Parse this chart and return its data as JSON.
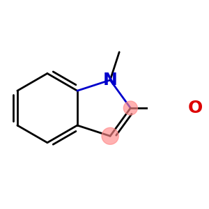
{
  "background_color": "#ffffff",
  "bond_color": "#000000",
  "N_color": "#0000cc",
  "O_color": "#dd0000",
  "dot_color": "#ff8888",
  "dot_alpha": 0.65,
  "figsize": [
    3.0,
    3.0
  ],
  "dpi": 100,
  "bond_lw": 2.0,
  "font_size_N": 18,
  "font_size_O": 18
}
